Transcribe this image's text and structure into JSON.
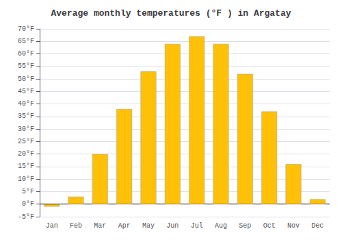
{
  "chart_data": {
    "type": "bar",
    "title": "Average monthly temperatures (°F ) in Argatay",
    "categories": [
      "Jan",
      "Feb",
      "Mar",
      "Apr",
      "May",
      "Jun",
      "Jul",
      "Aug",
      "Sep",
      "Oct",
      "Nov",
      "Dec"
    ],
    "values": [
      -1,
      3,
      20,
      38,
      53,
      64,
      67,
      64,
      52,
      37,
      16,
      2
    ],
    "color": "#FFC107",
    "ylim": [
      -5,
      70
    ],
    "yticks": [
      {
        "value": -5,
        "label": "-5°F"
      },
      {
        "value": 0,
        "label": "0°F"
      },
      {
        "value": 5,
        "label": "5°F"
      },
      {
        "value": 10,
        "label": "10°F"
      },
      {
        "value": 15,
        "label": "15°F"
      },
      {
        "value": 20,
        "label": "20°F"
      },
      {
        "value": 25,
        "label": "25°F"
      },
      {
        "value": 30,
        "label": "30°F"
      },
      {
        "value": 35,
        "label": "35°F"
      },
      {
        "value": 40,
        "label": "40°F"
      },
      {
        "value": 45,
        "label": "45°F"
      },
      {
        "value": 50,
        "label": "50°F"
      },
      {
        "value": 55,
        "label": "55°F"
      },
      {
        "value": 60,
        "label": "60°F"
      },
      {
        "value": 65,
        "label": "65°F"
      },
      {
        "value": 70,
        "label": "70°F"
      }
    ],
    "grid": true
  }
}
